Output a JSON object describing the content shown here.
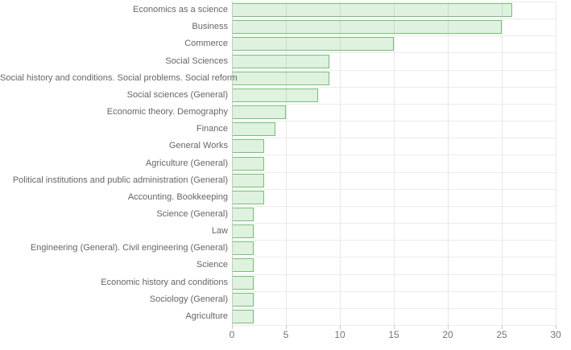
{
  "chart_data": {
    "type": "bar",
    "orientation": "horizontal",
    "title": "",
    "xlabel": "",
    "ylabel": "",
    "xlim": [
      0,
      30
    ],
    "xticks": [
      0,
      5,
      10,
      15,
      20,
      25,
      30
    ],
    "grid": true,
    "legend": false,
    "categories": [
      "Economics as a science",
      "Business",
      "Commerce",
      "Social Sciences",
      "Social history and conditions. Social problems. Social reform",
      "Social sciences (General)",
      "Economic theory. Demography",
      "Finance",
      "General Works",
      "Agriculture (General)",
      "Political institutions and public administration (General)",
      "Accounting. Bookkeeping",
      "Science (General)",
      "Law",
      "Engineering (General). Civil engineering (General)",
      "Science",
      "Economic history and conditions",
      "Sociology (General)",
      "Agriculture"
    ],
    "values": [
      26,
      25,
      15,
      9,
      9,
      8,
      5,
      4,
      3,
      3,
      3,
      3,
      2,
      2,
      2,
      2,
      2,
      2,
      2
    ],
    "colors": {
      "bar_fill": "rgba(76, 175, 80, 0.18)",
      "bar_border": "#72c172",
      "hgrid": "#ebebeb",
      "vgrid": "#e7e7e7",
      "axis_line": "#c9c9c9",
      "category_label": "#666666",
      "tick_label": "#757575"
    }
  }
}
